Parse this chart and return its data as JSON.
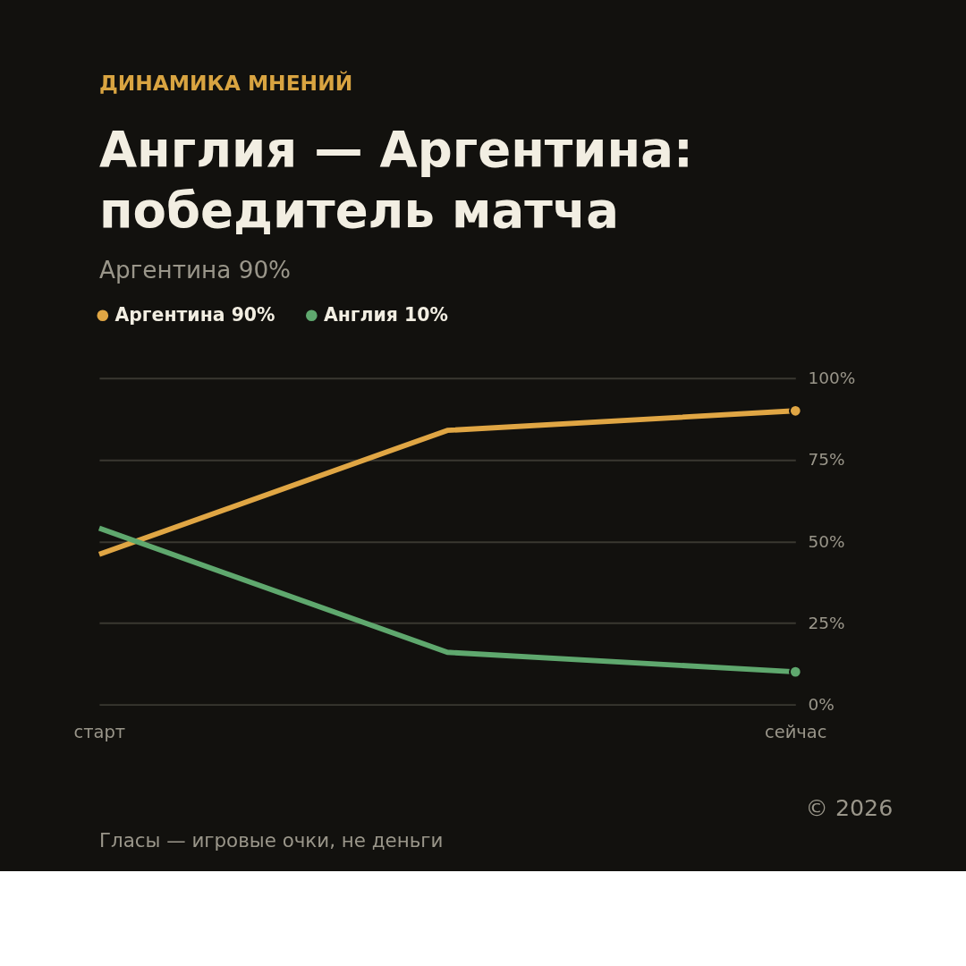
{
  "chart_data": {
    "type": "line",
    "title": "Англия — Аргентина:\nпобедитель матча",
    "subtitle": "Аргентина 90%",
    "categories": [
      "старт",
      null,
      "сейчас"
    ],
    "series": [
      {
        "name": "Аргентина 90%",
        "color": "#e0a644",
        "values": [
          46,
          84,
          90
        ]
      },
      {
        "name": "Англия 10%",
        "color": "#5fa86e",
        "values": [
          54,
          16,
          10
        ]
      }
    ],
    "ylim": [
      0,
      100
    ],
    "yticks": [
      {
        "value": 0,
        "label": "0%"
      },
      {
        "value": 25,
        "label": "25%"
      },
      {
        "value": 50,
        "label": "50%"
      },
      {
        "value": 75,
        "label": "75%"
      },
      {
        "value": 100,
        "label": "100%"
      }
    ],
    "grid": "y",
    "legend": "top left",
    "line_style": "solid",
    "annotations": [
      "ДИНАМИКА МНЕНИЙ",
      "Гласы — игровые очки, не деньги",
      "© 2026"
    ]
  }
}
